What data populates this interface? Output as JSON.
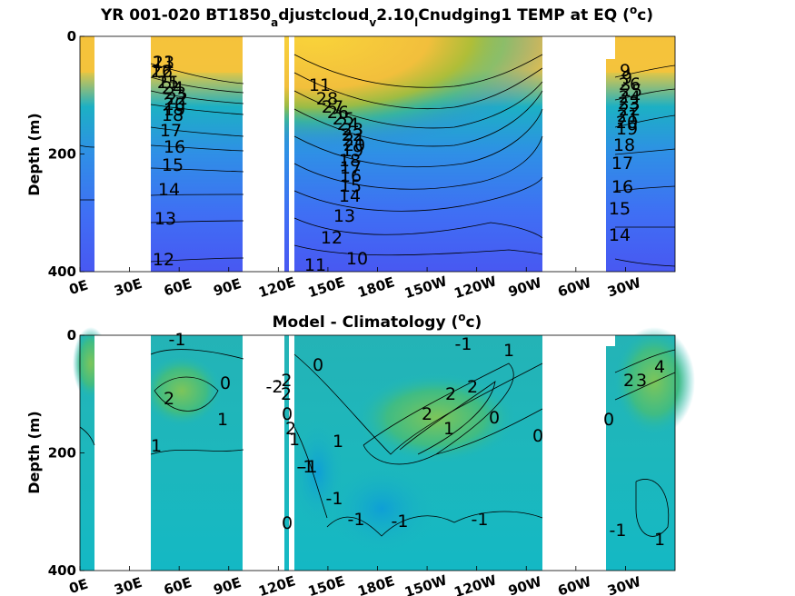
{
  "chart_data": [
    {
      "type": "heatmap",
      "title_main": "YR 001-020 BT1850",
      "title_sub1": "a",
      "title_mid1": "djustcloud",
      "title_sub2": "v",
      "title_mid2": "2.10",
      "title_sub3": "l",
      "title_mid3": "Cnudging1 TEMP at EQ (",
      "title_sup": "o",
      "title_end": "c)",
      "ylabel": "Depth (m)",
      "xlabel": "",
      "x_ticks": [
        "0E",
        "30E",
        "60E",
        "90E",
        "120E",
        "150E",
        "180E",
        "150W",
        "120W",
        "90W",
        "60W",
        "30W"
      ],
      "y_ticks": [
        "0",
        "200",
        "400"
      ],
      "ylim": [
        0,
        400
      ],
      "colormap": "parula",
      "contour_labels": [
        "21",
        "26",
        "25",
        "24",
        "23",
        "22",
        "20",
        "19",
        "18",
        "17",
        "16",
        "15",
        "14",
        "13",
        "12",
        "11",
        "28",
        "27",
        "26",
        "25",
        "24",
        "23",
        "22",
        "21",
        "20",
        "19",
        "18",
        "17",
        "16",
        "15",
        "14",
        "13",
        "12",
        "11",
        "10",
        "9",
        "9",
        "26",
        "25",
        "24",
        "23",
        "22",
        "21",
        "20",
        "19",
        "18",
        "17",
        "16",
        "15",
        "14",
        "13",
        "12",
        "11"
      ]
    },
    {
      "type": "heatmap",
      "title_main": "Model - Climatology (",
      "title_sup": "o",
      "title_end": "c)",
      "ylabel": "Depth (m)",
      "xlabel": "",
      "x_ticks": [
        "0E",
        "30E",
        "60E",
        "90E",
        "120E",
        "150E",
        "180E",
        "150W",
        "120W",
        "90W",
        "60W",
        "30W"
      ],
      "y_ticks": [
        "0",
        "200",
        "400"
      ],
      "ylim": [
        0,
        400
      ],
      "colormap": "parula",
      "contour_labels": [
        "-1",
        "0",
        "1",
        "1",
        "2",
        "-2",
        "2",
        "0",
        "2",
        "1",
        "-1",
        "-1",
        "0",
        "1",
        "2",
        "2",
        "2",
        "1",
        "0",
        "-1",
        "-1",
        "-1",
        "-1",
        "0",
        "1",
        "0",
        "0",
        "2",
        "3",
        "4",
        "-1",
        "1",
        "-2",
        "-1"
      ]
    }
  ]
}
